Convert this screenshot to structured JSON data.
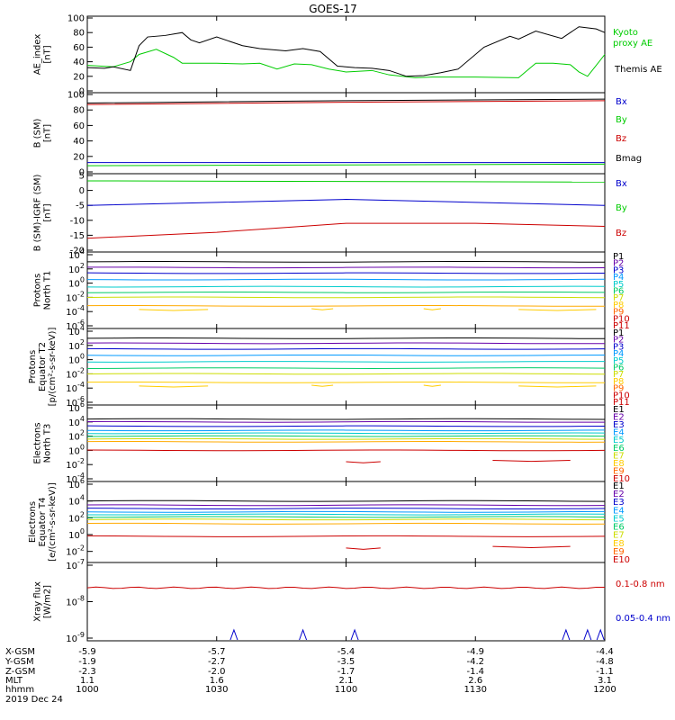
{
  "title": "GOES-17",
  "footer": {
    "rows": [
      {
        "label": "X-GSM",
        "values": [
          "-5.9",
          "-5.7",
          "-5.4",
          "-4.9",
          "-4.4"
        ]
      },
      {
        "label": "Y-GSM",
        "values": [
          "-1.9",
          "-2.7",
          "-3.5",
          "-4.2",
          "-4.8"
        ]
      },
      {
        "label": "Z-GSM",
        "values": [
          "-2.3",
          "-2.0",
          "-1.7",
          "-1.4",
          "-1.1"
        ]
      },
      {
        "label": "MLT",
        "values": [
          "1.1",
          "1.6",
          "2.1",
          "2.6",
          "3.1"
        ]
      },
      {
        "label": "hhmm",
        "values": [
          "1000",
          "1030",
          "1100",
          "1130",
          "1200"
        ]
      }
    ],
    "date": "2019 Dec 24"
  },
  "chart_data": [
    {
      "type": "line",
      "ylabel": [
        "AE_index",
        "[nT]"
      ],
      "ylim": [
        0,
        100
      ],
      "yticks": [
        "0",
        "20",
        "40",
        "60",
        "80",
        "100"
      ],
      "x_range_minutes": [
        0,
        120
      ],
      "series": [
        {
          "name": "Kyoto proxy AE",
          "color": "#00cc00",
          "legend_lines": [
            "Kyoto",
            "proxy AE"
          ],
          "x": [
            0,
            6,
            10,
            12,
            16,
            20,
            22,
            24,
            30,
            36,
            40,
            44,
            48,
            52,
            56,
            60,
            66,
            70,
            76,
            80,
            90,
            100,
            104,
            108,
            112,
            114,
            116,
            118,
            120
          ],
          "y": [
            35,
            33,
            40,
            50,
            57,
            46,
            38,
            38,
            38,
            37,
            38,
            30,
            37,
            36,
            30,
            26,
            28,
            22,
            18,
            19,
            19,
            18,
            38,
            38,
            36,
            26,
            20,
            35,
            50
          ]
        },
        {
          "name": "Themis AE",
          "color": "#000000",
          "legend_lines": [
            "Themis AE"
          ],
          "x": [
            0,
            4,
            6,
            10,
            12,
            14,
            18,
            22,
            24,
            26,
            30,
            36,
            40,
            46,
            50,
            54,
            58,
            62,
            66,
            70,
            74,
            78,
            82,
            86,
            92,
            98,
            100,
            104,
            110,
            114,
            118,
            120
          ],
          "y": [
            32,
            31,
            33,
            28,
            62,
            74,
            76,
            80,
            70,
            66,
            74,
            62,
            58,
            55,
            58,
            54,
            34,
            32,
            31,
            28,
            20,
            21,
            25,
            30,
            60,
            75,
            71,
            82,
            72,
            88,
            85,
            80
          ]
        }
      ]
    },
    {
      "type": "line",
      "ylabel": [
        "B (SM)",
        "[nT]"
      ],
      "ylim": [
        0,
        100
      ],
      "yticks": [
        "0",
        "20",
        "40",
        "60",
        "80",
        "100"
      ],
      "series": [
        {
          "name": "Bx",
          "color": "#0000cc",
          "x": [
            0,
            60,
            120
          ],
          "y": [
            12,
            12,
            12
          ]
        },
        {
          "name": "By",
          "color": "#00cc00",
          "x": [
            0,
            60,
            120
          ],
          "y": [
            8,
            9,
            10
          ]
        },
        {
          "name": "Bz",
          "color": "#cc0000",
          "x": [
            0,
            60,
            120
          ],
          "y": [
            87,
            90,
            92
          ]
        },
        {
          "name": "Bmag",
          "color": "#000000",
          "x": [
            0,
            60,
            120
          ],
          "y": [
            89,
            92,
            94
          ]
        }
      ]
    },
    {
      "type": "line",
      "ylabel": [
        "B (SM)-IGRF (SM)",
        "[nT]"
      ],
      "ylim": [
        -20,
        5
      ],
      "yticks": [
        "-20",
        "-15",
        "-10",
        "-5",
        "0",
        "5"
      ],
      "series": [
        {
          "name": "Bx",
          "color": "#0000cc",
          "x": [
            0,
            30,
            60,
            90,
            120
          ],
          "y": [
            -5,
            -4,
            -3,
            -4,
            -5
          ]
        },
        {
          "name": "By",
          "color": "#00cc00",
          "x": [
            0,
            60,
            120
          ],
          "y": [
            3.2,
            3,
            2.8
          ]
        },
        {
          "name": "Bz",
          "color": "#cc0000",
          "x": [
            0,
            30,
            60,
            90,
            120
          ],
          "y": [
            -16,
            -14,
            -11,
            -11,
            -12
          ]
        }
      ]
    },
    {
      "type": "line",
      "ylabel": [
        "Protons",
        "North T1"
      ],
      "ylim_log10": [
        -6,
        4
      ],
      "yticks": [
        {
          "base": "10",
          "exp": "-6"
        },
        {
          "base": "10",
          "exp": "-4"
        },
        {
          "base": "10",
          "exp": "-2"
        },
        {
          "base": "10",
          "exp": "0"
        },
        {
          "base": "10",
          "exp": "2"
        },
        {
          "base": "10",
          "exp": "4"
        }
      ],
      "channels": [
        "P1",
        "P2",
        "P3",
        "P4",
        "P5",
        "P6",
        "P7",
        "P8",
        "P9",
        "P10",
        "P11"
      ],
      "series_log10": [
        {
          "name": "P1",
          "color": "#000000",
          "y": 3.0
        },
        {
          "name": "P2",
          "color": "#6600aa",
          "y": 2.2
        },
        {
          "name": "P3",
          "color": "#0000cc",
          "y": 1.4
        },
        {
          "name": "P4",
          "color": "#0099ff",
          "y": 0.5
        },
        {
          "name": "P5",
          "color": "#00cccc",
          "y": -0.5
        },
        {
          "name": "P6",
          "color": "#00cc66",
          "y": -1.3
        },
        {
          "name": "P7",
          "color": "#ccdd00",
          "y": -2.0
        },
        {
          "name": "P8",
          "color": "#ffaa00",
          "y": -3.2
        }
      ]
    },
    {
      "type": "line",
      "ylabel": [
        "Protons",
        "Equator T2",
        "[p/(cm²-s-sr-keV)]"
      ],
      "ylim_log10": [
        -6,
        4
      ],
      "yticks": [
        {
          "base": "10",
          "exp": "-6"
        },
        {
          "base": "10",
          "exp": "-4"
        },
        {
          "base": "10",
          "exp": "-2"
        },
        {
          "base": "10",
          "exp": "0"
        },
        {
          "base": "10",
          "exp": "2"
        },
        {
          "base": "10",
          "exp": "4"
        }
      ],
      "channels": [
        "P1",
        "P2",
        "P3",
        "P4",
        "P5",
        "P6",
        "P7",
        "P8",
        "P9",
        "P10",
        "P11"
      ],
      "series_log10": [
        {
          "name": "P1",
          "color": "#000000",
          "y": 3.0
        },
        {
          "name": "P2",
          "color": "#6600aa",
          "y": 2.3
        },
        {
          "name": "P3",
          "color": "#0000cc",
          "y": 1.5
        },
        {
          "name": "P4",
          "color": "#0099ff",
          "y": 0.6
        },
        {
          "name": "P5",
          "color": "#00cccc",
          "y": -0.3
        },
        {
          "name": "P6",
          "color": "#00cc66",
          "y": -1.2
        },
        {
          "name": "P7",
          "color": "#ccdd00",
          "y": -2.0
        },
        {
          "name": "P8",
          "color": "#ffcc00",
          "y": -3.2
        }
      ]
    },
    {
      "type": "line",
      "ylabel": [
        "Electrons",
        "North T3"
      ],
      "ylim_log10": [
        -4,
        6
      ],
      "yticks": [
        {
          "base": "10",
          "exp": "-4"
        },
        {
          "base": "10",
          "exp": "-2"
        },
        {
          "base": "10",
          "exp": "0"
        },
        {
          "base": "10",
          "exp": "2"
        },
        {
          "base": "10",
          "exp": "4"
        },
        {
          "base": "10",
          "exp": "6"
        }
      ],
      "channels": [
        "E1",
        "E2",
        "E3",
        "E4",
        "E5",
        "E6",
        "E7",
        "E8",
        "E9",
        "E10"
      ],
      "series_log10": [
        {
          "name": "E1",
          "color": "#000000",
          "y": 4.4
        },
        {
          "name": "E2",
          "color": "#6600aa",
          "y": 4.0
        },
        {
          "name": "E3",
          "color": "#0000cc",
          "y": 3.4
        },
        {
          "name": "E4",
          "color": "#0099ff",
          "y": 2.8
        },
        {
          "name": "E5",
          "color": "#00cccc",
          "y": 2.4
        },
        {
          "name": "E6",
          "color": "#00cc66",
          "y": 2.0
        },
        {
          "name": "E7",
          "color": "#ccdd00",
          "y": 1.6
        },
        {
          "name": "E8",
          "color": "#ffaa00",
          "y": 1.2
        },
        {
          "name": "E9",
          "color": "#cc0000",
          "y": 0.0
        }
      ]
    },
    {
      "type": "line",
      "ylabel": [
        "Electrons",
        "Equator T4",
        "[e/(cm²-s-sr-keV)]"
      ],
      "ylim_log10": [
        -3,
        6
      ],
      "yticks": [
        {
          "base": "10",
          "exp": "-2"
        },
        {
          "base": "10",
          "exp": "0"
        },
        {
          "base": "10",
          "exp": "2"
        },
        {
          "base": "10",
          "exp": "4"
        },
        {
          "base": "10",
          "exp": "6"
        }
      ],
      "channels": [
        "E1",
        "E2",
        "E3",
        "E4",
        "E5",
        "E6",
        "E7",
        "E8",
        "E9",
        "E10"
      ],
      "series_log10": [
        {
          "name": "E1",
          "color": "#000000",
          "y": 4.0
        },
        {
          "name": "E2",
          "color": "#6600aa",
          "y": 3.5
        },
        {
          "name": "E3",
          "color": "#0000cc",
          "y": 3.1
        },
        {
          "name": "E4",
          "color": "#0099ff",
          "y": 2.7
        },
        {
          "name": "E5",
          "color": "#00cccc",
          "y": 2.4
        },
        {
          "name": "E6",
          "color": "#00cc66",
          "y": 2.1
        },
        {
          "name": "E7",
          "color": "#ccdd00",
          "y": 1.8
        },
        {
          "name": "E8",
          "color": "#ffaa00",
          "y": 1.3
        },
        {
          "name": "E9",
          "color": "#cc0000",
          "y": -0.2
        }
      ]
    },
    {
      "type": "line",
      "ylabel": [
        "Xray flux",
        "[W/m2]"
      ],
      "ylim_log10": [
        -9,
        -7
      ],
      "yticks": [
        {
          "base": "10",
          "exp": "-9"
        },
        {
          "base": "10",
          "exp": "-8"
        },
        {
          "base": "10",
          "exp": "-7"
        }
      ],
      "series": [
        {
          "name": "0.1-0.8 nm",
          "color": "#cc0000",
          "log10_level": -7.62
        },
        {
          "name": "0.05-0.4 nm",
          "color": "#0000cc",
          "log10_level": -9.0,
          "spike_x": [
            34,
            50,
            62,
            111,
            116,
            119
          ]
        }
      ]
    }
  ]
}
